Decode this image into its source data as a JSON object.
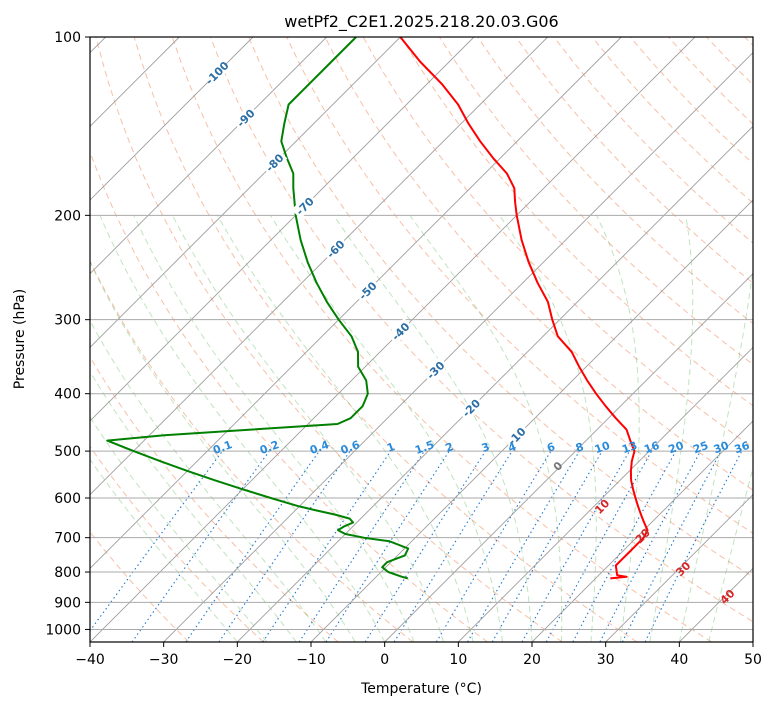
{
  "chart_data": {
    "type": "line",
    "title": "wetPf2_C2E1.2025.218.20.03.G06",
    "xlabel": "Temperature (°C)",
    "ylabel": "Pressure (hPa)",
    "xlim": [
      -40,
      50
    ],
    "ylim": [
      1050,
      100
    ],
    "y_scale": "log",
    "grid": true,
    "x_ticks": [
      -40,
      -30,
      -20,
      -10,
      0,
      10,
      20,
      30,
      40,
      50
    ],
    "y_ticks": [
      100,
      200,
      300,
      400,
      500,
      600,
      700,
      800,
      900,
      1000
    ],
    "skew_labels": {
      "isotherm_labels": [
        {
          "p": 115,
          "t": -100,
          "label": "-100"
        },
        {
          "p": 137,
          "t": -90,
          "label": "-90"
        },
        {
          "p": 163,
          "t": -80,
          "label": "-80"
        },
        {
          "p": 193,
          "t": -70,
          "label": "-70"
        },
        {
          "p": 228,
          "t": -60,
          "label": "-60"
        },
        {
          "p": 268,
          "t": -50,
          "label": "-50"
        },
        {
          "p": 314,
          "t": -40,
          "label": "-40"
        },
        {
          "p": 365,
          "t": -30,
          "label": "-30"
        },
        {
          "p": 423,
          "t": -20,
          "label": "-20"
        },
        {
          "p": 472,
          "t": -10,
          "label": "-10"
        }
      ],
      "mixing_ratio_labels": [
        "0.1",
        "0.2",
        "0.4",
        "0.6",
        "1",
        "1.5",
        "2",
        "3",
        "4",
        "6",
        "8",
        "10",
        "13",
        "16",
        "20",
        "25",
        "30",
        "36"
      ],
      "mixing_ratio_values": [
        0.1,
        0.2,
        0.4,
        0.6,
        1,
        1.5,
        2,
        3,
        4,
        6,
        8,
        10,
        13,
        16,
        20,
        25,
        30,
        36
      ],
      "mixing_ratio_top_p": 500,
      "moist_adiabat_labels": [
        {
          "p": 530,
          "t": 23.5,
          "label": "0"
        },
        {
          "p": 620,
          "t": 29.5,
          "label": "10"
        },
        {
          "p": 695,
          "t": 35,
          "label": "20"
        },
        {
          "p": 790,
          "t": 40.5,
          "label": "30"
        },
        {
          "p": 880,
          "t": 46.5,
          "label": "40"
        }
      ]
    },
    "series": [
      {
        "role": "temperature",
        "color": "#ff0000",
        "p": [
          820,
          815,
          810,
          800,
          790,
          780,
          760,
          740,
          720,
          700,
          680,
          660,
          640,
          620,
          600,
          580,
          560,
          540,
          520,
          510,
          500,
          480,
          460,
          440,
          420,
          400,
          380,
          360,
          340,
          320,
          300,
          280,
          260,
          240,
          220,
          200,
          190,
          180,
          170,
          160,
          150,
          140,
          130,
          120,
          110,
          100
        ],
        "t": [
          22,
          24,
          22.5,
          22,
          21.5,
          21,
          21,
          21,
          21,
          21,
          20.5,
          19,
          17.5,
          16,
          14.5,
          13,
          11.5,
          10.2,
          9,
          8.5,
          8,
          6,
          4,
          1,
          -2,
          -5,
          -8,
          -11,
          -14,
          -18,
          -21,
          -24,
          -28,
          -32,
          -36,
          -40,
          -42,
          -44,
          -47,
          -51,
          -55,
          -59,
          -63,
          -68,
          -74,
          -80
        ]
      },
      {
        "role": "dewpoint",
        "color": "#008000",
        "p": [
          820,
          815,
          800,
          785,
          770,
          750,
          730,
          710,
          700,
          690,
          680,
          670,
          660,
          650,
          640,
          630,
          620,
          600,
          580,
          560,
          540,
          520,
          500,
          480,
          470,
          460,
          450,
          440,
          420,
          400,
          380,
          360,
          340,
          320,
          300,
          280,
          260,
          240,
          220,
          200,
          180,
          170,
          160,
          150,
          140,
          130,
          120,
          110,
          100
        ],
        "t": [
          -5.5,
          -6.5,
          -9,
          -10.5,
          -10.5,
          -9,
          -9.5,
          -13,
          -17,
          -20,
          -21.5,
          -21.2,
          -20.5,
          -21.5,
          -24,
          -27,
          -30,
          -35,
          -40,
          -45,
          -50,
          -55,
          -60,
          -65,
          -58,
          -47,
          -36,
          -35,
          -35,
          -36,
          -38,
          -41,
          -43,
          -46,
          -50,
          -54,
          -58,
          -62,
          -66,
          -70,
          -74,
          -76,
          -79,
          -82,
          -84,
          -86,
          -86,
          -86,
          -86
        ]
      }
    ]
  }
}
